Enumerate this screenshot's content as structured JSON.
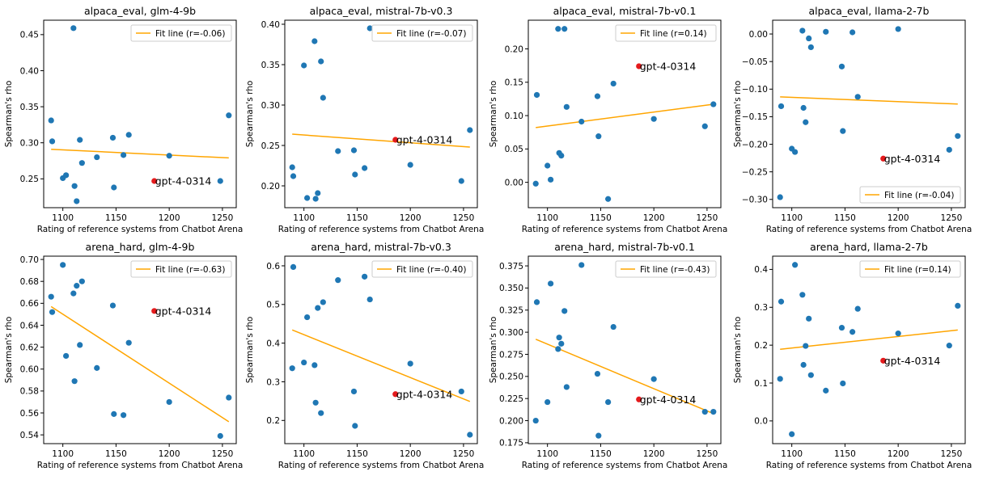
{
  "colors": {
    "point": "#1f77b4",
    "highlight": "#e41a1c",
    "fit": "#ffa500"
  },
  "chart_data": [
    {
      "type": "scatter",
      "title": "alpaca_eval, glm-4-9b",
      "xlabel": "Rating of reference systems from Chatbot Arena",
      "ylabel": "Spearman's rho",
      "xlim": [
        1082,
        1263
      ],
      "ylim": [
        0.21,
        0.47
      ],
      "xticks": [
        1100,
        1150,
        1200,
        1250
      ],
      "yticks": [
        0.25,
        0.3,
        0.35,
        0.4,
        0.45
      ],
      "ytick_labels": [
        "0.25",
        "0.30",
        "0.35",
        "0.40",
        "0.45"
      ],
      "legend_position": "top-right",
      "points": [
        {
          "x": 1089,
          "y": 0.331
        },
        {
          "x": 1090,
          "y": 0.302
        },
        {
          "x": 1100,
          "y": 0.251
        },
        {
          "x": 1103,
          "y": 0.255
        },
        {
          "x": 1110,
          "y": 0.459
        },
        {
          "x": 1111,
          "y": 0.24
        },
        {
          "x": 1113,
          "y": 0.219
        },
        {
          "x": 1116,
          "y": 0.304
        },
        {
          "x": 1118,
          "y": 0.272
        },
        {
          "x": 1132,
          "y": 0.28
        },
        {
          "x": 1147,
          "y": 0.307
        },
        {
          "x": 1148,
          "y": 0.238
        },
        {
          "x": 1157,
          "y": 0.283
        },
        {
          "x": 1162,
          "y": 0.311
        },
        {
          "x": 1200,
          "y": 0.282
        },
        {
          "x": 1248,
          "y": 0.247
        },
        {
          "x": 1256,
          "y": 0.338
        }
      ],
      "highlight": {
        "label": "gpt-4-0314",
        "x": 1186,
        "y": 0.247
      },
      "fit": {
        "label": "Fit line (r=-0.06)",
        "x": [
          1089,
          1256
        ],
        "y": [
          0.291,
          0.279
        ]
      }
    },
    {
      "type": "scatter",
      "title": "alpaca_eval, mistral-7b-v0.3",
      "xlabel": "Rating of reference systems from Chatbot Arena",
      "ylabel": "Spearman's rho",
      "xlim": [
        1082,
        1263
      ],
      "ylim": [
        0.173,
        0.405
      ],
      "xticks": [
        1100,
        1150,
        1200,
        1250
      ],
      "yticks": [
        0.2,
        0.25,
        0.3,
        0.35,
        0.4
      ],
      "ytick_labels": [
        "0.20",
        "0.25",
        "0.30",
        "0.35",
        "0.40"
      ],
      "legend_position": "top-right",
      "points": [
        {
          "x": 1089,
          "y": 0.223
        },
        {
          "x": 1090,
          "y": 0.212
        },
        {
          "x": 1100,
          "y": 0.349
        },
        {
          "x": 1103,
          "y": 0.185
        },
        {
          "x": 1110,
          "y": 0.379
        },
        {
          "x": 1111,
          "y": 0.184
        },
        {
          "x": 1113,
          "y": 0.191
        },
        {
          "x": 1116,
          "y": 0.354
        },
        {
          "x": 1118,
          "y": 0.309
        },
        {
          "x": 1132,
          "y": 0.243
        },
        {
          "x": 1147,
          "y": 0.244
        },
        {
          "x": 1148,
          "y": 0.214
        },
        {
          "x": 1157,
          "y": 0.222
        },
        {
          "x": 1162,
          "y": 0.395
        },
        {
          "x": 1200,
          "y": 0.226
        },
        {
          "x": 1248,
          "y": 0.206
        },
        {
          "x": 1256,
          "y": 0.269
        }
      ],
      "highlight": {
        "label": "gpt-4-0314",
        "x": 1186,
        "y": 0.257
      },
      "fit": {
        "label": "Fit line (r=-0.07)",
        "x": [
          1089,
          1256
        ],
        "y": [
          0.264,
          0.248
        ]
      }
    },
    {
      "type": "scatter",
      "title": "alpaca_eval, mistral-7b-v0.1",
      "xlabel": "Rating of reference systems from Chatbot Arena",
      "ylabel": "Spearman's rho",
      "xlim": [
        1082,
        1263
      ],
      "ylim": [
        -0.038,
        0.243
      ],
      "xticks": [
        1100,
        1150,
        1200,
        1250
      ],
      "yticks": [
        0.0,
        0.05,
        0.1,
        0.15,
        0.2
      ],
      "ytick_labels": [
        "0.00",
        "0.05",
        "0.10",
        "0.15",
        "0.20"
      ],
      "legend_position": "top-right",
      "points": [
        {
          "x": 1089,
          "y": -0.002
        },
        {
          "x": 1090,
          "y": 0.131
        },
        {
          "x": 1100,
          "y": 0.025
        },
        {
          "x": 1103,
          "y": 0.004
        },
        {
          "x": 1110,
          "y": 0.23
        },
        {
          "x": 1111,
          "y": 0.044
        },
        {
          "x": 1113,
          "y": 0.04
        },
        {
          "x": 1116,
          "y": 0.23
        },
        {
          "x": 1118,
          "y": 0.113
        },
        {
          "x": 1132,
          "y": 0.091
        },
        {
          "x": 1147,
          "y": 0.129
        },
        {
          "x": 1148,
          "y": 0.069
        },
        {
          "x": 1157,
          "y": -0.025
        },
        {
          "x": 1162,
          "y": 0.148
        },
        {
          "x": 1200,
          "y": 0.095
        },
        {
          "x": 1248,
          "y": 0.084
        },
        {
          "x": 1256,
          "y": 0.117
        }
      ],
      "highlight": {
        "label": "gpt-4-0314",
        "x": 1186,
        "y": 0.174
      },
      "fit": {
        "label": "Fit line (r=0.14)",
        "x": [
          1089,
          1256
        ],
        "y": [
          0.082,
          0.117
        ]
      }
    },
    {
      "type": "scatter",
      "title": "alpaca_eval, llama-2-7b",
      "xlabel": "Rating of reference systems from Chatbot Arena",
      "ylabel": "Spearman's rho",
      "xlim": [
        1082,
        1263
      ],
      "ylim": [
        -0.315,
        0.025
      ],
      "xticks": [
        1100,
        1150,
        1200,
        1250
      ],
      "yticks": [
        -0.3,
        -0.25,
        -0.2,
        -0.15,
        -0.1,
        -0.05,
        0.0
      ],
      "ytick_labels": [
        "−0.30",
        "−0.25",
        "−0.20",
        "−0.15",
        "−0.10",
        "−0.05",
        "0.00"
      ],
      "legend_position": "lower-right",
      "points": [
        {
          "x": 1089,
          "y": -0.296
        },
        {
          "x": 1090,
          "y": -0.131
        },
        {
          "x": 1100,
          "y": -0.208
        },
        {
          "x": 1103,
          "y": -0.214
        },
        {
          "x": 1110,
          "y": 0.006
        },
        {
          "x": 1111,
          "y": -0.134
        },
        {
          "x": 1113,
          "y": -0.16
        },
        {
          "x": 1116,
          "y": -0.008
        },
        {
          "x": 1118,
          "y": -0.024
        },
        {
          "x": 1132,
          "y": 0.004
        },
        {
          "x": 1147,
          "y": -0.059
        },
        {
          "x": 1148,
          "y": -0.176
        },
        {
          "x": 1157,
          "y": 0.003
        },
        {
          "x": 1162,
          "y": -0.114
        },
        {
          "x": 1200,
          "y": 0.009
        },
        {
          "x": 1248,
          "y": -0.21
        },
        {
          "x": 1256,
          "y": -0.185
        }
      ],
      "highlight": {
        "label": "gpt-4-0314",
        "x": 1186,
        "y": -0.226
      },
      "fit": {
        "label": "Fit line (r=-0.04)",
        "x": [
          1089,
          1256
        ],
        "y": [
          -0.114,
          -0.127
        ]
      }
    },
    {
      "type": "scatter",
      "title": "arena_hard, glm-4-9b",
      "xlabel": "Rating of reference systems from Chatbot Arena",
      "ylabel": "Spearman's rho",
      "xlim": [
        1082,
        1263
      ],
      "ylim": [
        0.532,
        0.703
      ],
      "xticks": [
        1100,
        1150,
        1200,
        1250
      ],
      "yticks": [
        0.54,
        0.56,
        0.58,
        0.6,
        0.62,
        0.64,
        0.66,
        0.68,
        0.7
      ],
      "ytick_labels": [
        "0.54",
        "0.56",
        "0.58",
        "0.60",
        "0.62",
        "0.64",
        "0.66",
        "0.68",
        "0.70"
      ],
      "legend_position": "top-right",
      "points": [
        {
          "x": 1089,
          "y": 0.666
        },
        {
          "x": 1090,
          "y": 0.652
        },
        {
          "x": 1100,
          "y": 0.695
        },
        {
          "x": 1103,
          "y": 0.612
        },
        {
          "x": 1110,
          "y": 0.669
        },
        {
          "x": 1111,
          "y": 0.589
        },
        {
          "x": 1113,
          "y": 0.676
        },
        {
          "x": 1116,
          "y": 0.622
        },
        {
          "x": 1118,
          "y": 0.68
        },
        {
          "x": 1132,
          "y": 0.601
        },
        {
          "x": 1147,
          "y": 0.658
        },
        {
          "x": 1148,
          "y": 0.559
        },
        {
          "x": 1157,
          "y": 0.558
        },
        {
          "x": 1162,
          "y": 0.624
        },
        {
          "x": 1200,
          "y": 0.57
        },
        {
          "x": 1248,
          "y": 0.539
        },
        {
          "x": 1256,
          "y": 0.574
        }
      ],
      "highlight": {
        "label": "gpt-4-0314",
        "x": 1186,
        "y": 0.653
      },
      "fit": {
        "label": "Fit line (r=-0.63)",
        "x": [
          1089,
          1256
        ],
        "y": [
          0.657,
          0.552
        ]
      }
    },
    {
      "type": "scatter",
      "title": "arena_hard, mistral-7b-v0.3",
      "xlabel": "Rating of reference systems from Chatbot Arena",
      "ylabel": "Spearman's rho",
      "xlim": [
        1082,
        1263
      ],
      "ylim": [
        0.14,
        0.625
      ],
      "xticks": [
        1100,
        1150,
        1200,
        1250
      ],
      "yticks": [
        0.2,
        0.3,
        0.4,
        0.5,
        0.6
      ],
      "ytick_labels": [
        "0.2",
        "0.3",
        "0.4",
        "0.5",
        "0.6"
      ],
      "legend_position": "top-right",
      "points": [
        {
          "x": 1089,
          "y": 0.335
        },
        {
          "x": 1090,
          "y": 0.597
        },
        {
          "x": 1100,
          "y": 0.35
        },
        {
          "x": 1103,
          "y": 0.467
        },
        {
          "x": 1110,
          "y": 0.343
        },
        {
          "x": 1111,
          "y": 0.246
        },
        {
          "x": 1113,
          "y": 0.491
        },
        {
          "x": 1116,
          "y": 0.219
        },
        {
          "x": 1118,
          "y": 0.506
        },
        {
          "x": 1132,
          "y": 0.563
        },
        {
          "x": 1147,
          "y": 0.275
        },
        {
          "x": 1148,
          "y": 0.186
        },
        {
          "x": 1157,
          "y": 0.572
        },
        {
          "x": 1162,
          "y": 0.513
        },
        {
          "x": 1200,
          "y": 0.347
        },
        {
          "x": 1248,
          "y": 0.275
        },
        {
          "x": 1256,
          "y": 0.163
        }
      ],
      "highlight": {
        "label": "gpt-4-0314",
        "x": 1186,
        "y": 0.268
      },
      "fit": {
        "label": "Fit line (r=-0.40)",
        "x": [
          1089,
          1256
        ],
        "y": [
          0.434,
          0.249
        ]
      }
    },
    {
      "type": "scatter",
      "title": "arena_hard, mistral-7b-v0.1",
      "xlabel": "Rating of reference systems from Chatbot Arena",
      "ylabel": "Spearman's rho",
      "xlim": [
        1082,
        1263
      ],
      "ylim": [
        0.174,
        0.386
      ],
      "xticks": [
        1100,
        1150,
        1200,
        1250
      ],
      "yticks": [
        0.175,
        0.2,
        0.225,
        0.25,
        0.275,
        0.3,
        0.325,
        0.35,
        0.375
      ],
      "ytick_labels": [
        "0.175",
        "0.200",
        "0.225",
        "0.250",
        "0.275",
        "0.300",
        "0.325",
        "0.350",
        "0.375"
      ],
      "legend_position": "top-right",
      "points": [
        {
          "x": 1089,
          "y": 0.2
        },
        {
          "x": 1090,
          "y": 0.334
        },
        {
          "x": 1100,
          "y": 0.221
        },
        {
          "x": 1103,
          "y": 0.355
        },
        {
          "x": 1110,
          "y": 0.281
        },
        {
          "x": 1111,
          "y": 0.294
        },
        {
          "x": 1113,
          "y": 0.287
        },
        {
          "x": 1116,
          "y": 0.324
        },
        {
          "x": 1118,
          "y": 0.238
        },
        {
          "x": 1132,
          "y": 0.376
        },
        {
          "x": 1147,
          "y": 0.253
        },
        {
          "x": 1148,
          "y": 0.183
        },
        {
          "x": 1157,
          "y": 0.221
        },
        {
          "x": 1162,
          "y": 0.306
        },
        {
          "x": 1200,
          "y": 0.247
        },
        {
          "x": 1248,
          "y": 0.21
        },
        {
          "x": 1256,
          "y": 0.21
        }
      ],
      "highlight": {
        "label": "gpt-4-0314",
        "x": 1186,
        "y": 0.224
      },
      "fit": {
        "label": "Fit line (r=-0.43)",
        "x": [
          1089,
          1256
        ],
        "y": [
          0.292,
          0.208
        ]
      }
    },
    {
      "type": "scatter",
      "title": "arena_hard, llama-2-7b",
      "xlabel": "Rating of reference systems from Chatbot Arena",
      "ylabel": "Spearman's rho",
      "xlim": [
        1082,
        1263
      ],
      "ylim": [
        -0.06,
        0.435
      ],
      "xticks": [
        1100,
        1150,
        1200,
        1250
      ],
      "yticks": [
        0.0,
        0.1,
        0.2,
        0.3,
        0.4
      ],
      "ytick_labels": [
        "0.0",
        "0.1",
        "0.2",
        "0.3",
        "0.4"
      ],
      "legend_position": "top-right",
      "points": [
        {
          "x": 1089,
          "y": 0.111
        },
        {
          "x": 1090,
          "y": 0.315
        },
        {
          "x": 1100,
          "y": -0.035
        },
        {
          "x": 1103,
          "y": 0.412
        },
        {
          "x": 1110,
          "y": 0.333
        },
        {
          "x": 1111,
          "y": 0.148
        },
        {
          "x": 1113,
          "y": 0.198
        },
        {
          "x": 1116,
          "y": 0.27
        },
        {
          "x": 1118,
          "y": 0.121
        },
        {
          "x": 1132,
          "y": 0.08
        },
        {
          "x": 1147,
          "y": 0.246
        },
        {
          "x": 1148,
          "y": 0.099
        },
        {
          "x": 1157,
          "y": 0.235
        },
        {
          "x": 1162,
          "y": 0.296
        },
        {
          "x": 1200,
          "y": 0.231
        },
        {
          "x": 1248,
          "y": 0.199
        },
        {
          "x": 1256,
          "y": 0.304
        }
      ],
      "highlight": {
        "label": "gpt-4-0314",
        "x": 1186,
        "y": 0.159
      },
      "fit": {
        "label": "Fit line (r=0.14)",
        "x": [
          1089,
          1256
        ],
        "y": [
          0.189,
          0.24
        ]
      }
    }
  ]
}
